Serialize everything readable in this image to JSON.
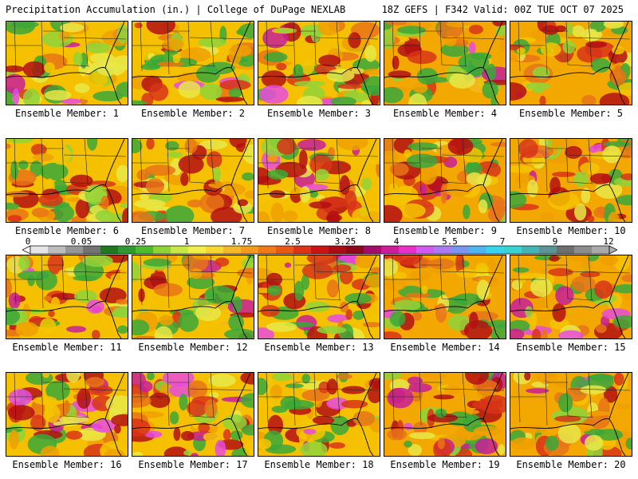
{
  "header": {
    "title_left": "Precipitation Accumulation (in.) | College of DuPage NEXLAB",
    "title_right": "18Z GEFS | F342 Valid: 00Z TUE OCT 07 2025"
  },
  "panels": [
    {
      "caption": "Ensemble Member: 1"
    },
    {
      "caption": "Ensemble Member: 2"
    },
    {
      "caption": "Ensemble Member: 3"
    },
    {
      "caption": "Ensemble Member: 4"
    },
    {
      "caption": "Ensemble Member: 5"
    },
    {
      "caption": "Ensemble Member: 6"
    },
    {
      "caption": "Ensemble Member: 7"
    },
    {
      "caption": "Ensemble Member: 8"
    },
    {
      "caption": "Ensemble Member: 9"
    },
    {
      "caption": "Ensemble Member: 10"
    },
    {
      "caption": "Ensemble Member: 11"
    },
    {
      "caption": "Ensemble Member: 12"
    },
    {
      "caption": "Ensemble Member: 13"
    },
    {
      "caption": "Ensemble Member: 14"
    },
    {
      "caption": "Ensemble Member: 15"
    },
    {
      "caption": "Ensemble Member: 16"
    },
    {
      "caption": "Ensemble Member: 17"
    },
    {
      "caption": "Ensemble Member: 18"
    },
    {
      "caption": "Ensemble Member: 19"
    },
    {
      "caption": "Ensemble Member: 20"
    }
  ],
  "colorbar": {
    "tick_labels": [
      "0",
      "0.05",
      "0.25",
      "1",
      "1.75",
      "2.5",
      "3.25",
      "4",
      "5.5",
      "7",
      "9",
      "12"
    ],
    "colors": [
      "#e6e6e6",
      "#bdbdbd",
      "#969696",
      "#737373",
      "#1e7a1e",
      "#2e9a2e",
      "#4dbb2e",
      "#8fd33a",
      "#c8e84a",
      "#f0f04a",
      "#f7d735",
      "#f5b82a",
      "#f29b22",
      "#ee7a1c",
      "#e65a18",
      "#dc3416",
      "#c81414",
      "#a80e14",
      "#8a0a1a",
      "#a0106a",
      "#c81e9a",
      "#e632c8",
      "#d25af0",
      "#aa7cf0",
      "#7a96f0",
      "#50b4f0",
      "#3cd2f0",
      "#3cd2d2",
      "#46b4b4",
      "#5a9696",
      "#6e6e6e",
      "#8c8c8c",
      "#aaaaaa"
    ]
  }
}
